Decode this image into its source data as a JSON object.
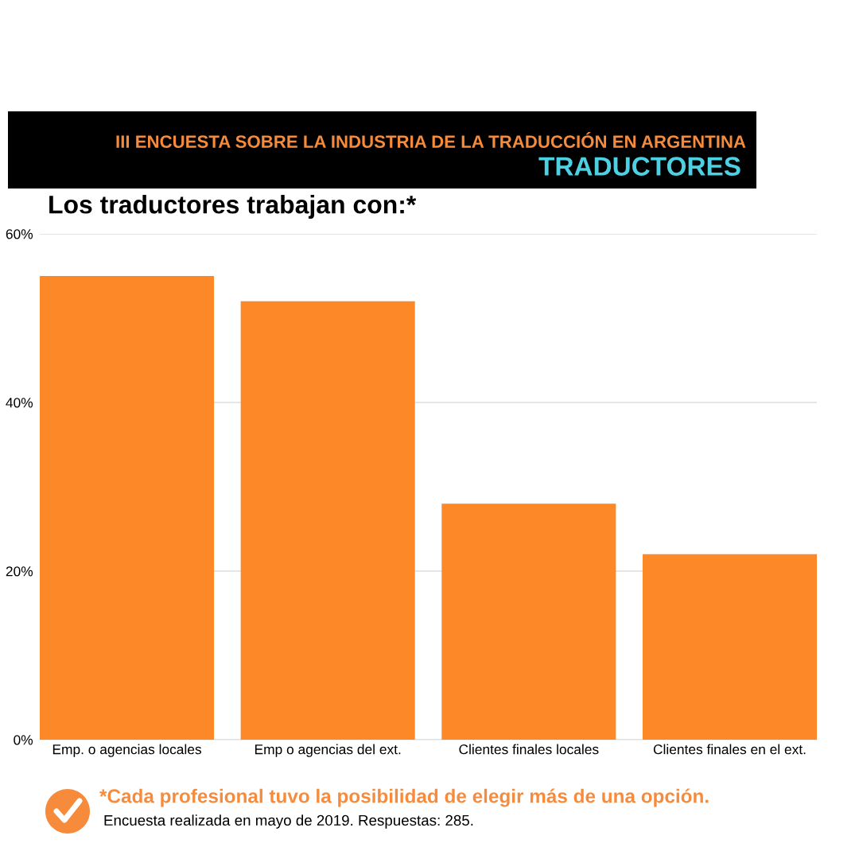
{
  "chart_data": {
    "type": "bar",
    "title": "III ENCUESTA SOBRE LA INDUSTRIA DE LA TRADUCCIÓN EN ARGENTINA",
    "subtitle": "TRADUCTORES",
    "annotations": [
      "Los traductores trabajan con:*",
      "*Cada profesional tuvo la posibilidad de elegir más de una opción.",
      "Encuesta realizada en mayo de 2019. Respuestas: 285."
    ],
    "categories": [
      "Emp. o agencias locales",
      "Emp o agencias del ext.",
      "Clientes finales locales",
      "Clientes finales en el ext."
    ],
    "values": [
      55,
      52,
      28,
      22
    ],
    "color": "#fd8827",
    "ylim": [
      0,
      60
    ],
    "yticks": [
      {
        "value": 0,
        "label": "0%"
      },
      {
        "value": 20,
        "label": "20%"
      },
      {
        "value": 40,
        "label": "40%"
      },
      {
        "value": 60,
        "label": "60%"
      }
    ],
    "grid": "y"
  }
}
